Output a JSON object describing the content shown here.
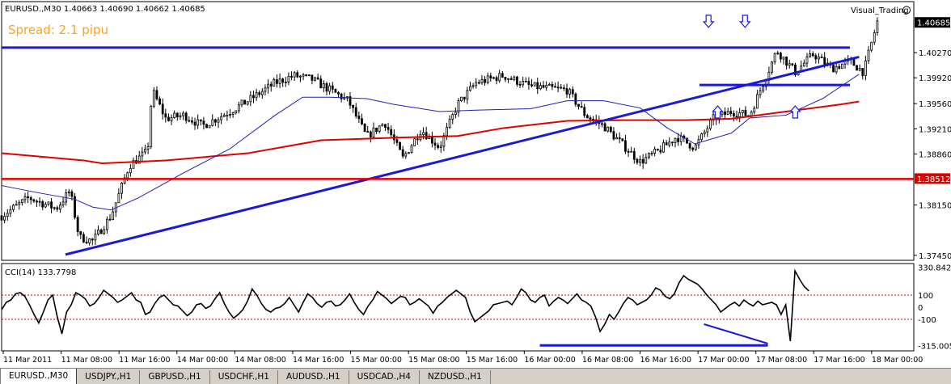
{
  "chart_data": [
    {
      "type": "candlestick",
      "symbol_header": "EURUSD.,M30  1.40663 1.40690 1.40662 1.40685",
      "spread_label": "Spread: 2.1 pipu",
      "indicator_name": "Visual_Trading",
      "current_price_label": "1.40685",
      "support_price_label": "1.38512",
      "ylim": [
        1.3738,
        1.4098
      ],
      "y_tick_labels": [
        "1.40270",
        "1.39920",
        "1.39560",
        "1.39210",
        "1.38860",
        "1.38150",
        "1.37450"
      ],
      "y_ticks": [
        1.4027,
        1.3992,
        1.3956,
        1.3921,
        1.3886,
        1.3815,
        1.3745
      ],
      "current_price": 1.40685,
      "support_level": 1.38512,
      "resistance_level": 1.4034,
      "neckline_level": 1.3982,
      "trendline": [
        [
          0.07,
          1.3746
        ],
        [
          0.94,
          1.4021
        ]
      ],
      "ma_slow": [
        [
          0.0,
          1.3887
        ],
        [
          0.09,
          1.3877
        ],
        [
          0.11,
          1.3873
        ],
        [
          0.18,
          1.3877
        ],
        [
          0.27,
          1.3887
        ],
        [
          0.35,
          1.3905
        ],
        [
          0.44,
          1.3909
        ],
        [
          0.5,
          1.3911
        ],
        [
          0.55,
          1.3922
        ],
        [
          0.62,
          1.3932
        ],
        [
          0.68,
          1.3933
        ],
        [
          0.75,
          1.3933
        ],
        [
          0.8,
          1.3935
        ],
        [
          0.86,
          1.3945
        ],
        [
          0.92,
          1.3955
        ],
        [
          0.94,
          1.3959
        ]
      ],
      "ma_fast": [
        [
          0.0,
          1.3842
        ],
        [
          0.04,
          1.3832
        ],
        [
          0.08,
          1.3823
        ],
        [
          0.1,
          1.3812
        ],
        [
          0.12,
          1.3808
        ],
        [
          0.15,
          1.3825
        ],
        [
          0.2,
          1.386
        ],
        [
          0.25,
          1.3893
        ],
        [
          0.3,
          1.394
        ],
        [
          0.33,
          1.3965
        ],
        [
          0.36,
          1.3965
        ],
        [
          0.4,
          1.3963
        ],
        [
          0.43,
          1.3955
        ],
        [
          0.48,
          1.3945
        ],
        [
          0.52,
          1.3947
        ],
        [
          0.58,
          1.3949
        ],
        [
          0.62,
          1.396
        ],
        [
          0.66,
          1.396
        ],
        [
          0.7,
          1.395
        ],
        [
          0.73,
          1.3922
        ],
        [
          0.76,
          1.39
        ],
        [
          0.8,
          1.3915
        ],
        [
          0.82,
          1.3936
        ],
        [
          0.86,
          1.394
        ],
        [
          0.9,
          1.3963
        ],
        [
          0.94,
          1.3997
        ]
      ],
      "price_path": [
        [
          0.0,
          1.38
        ],
        [
          0.03,
          1.3825
        ],
        [
          0.06,
          1.381
        ],
        [
          0.075,
          1.3835
        ],
        [
          0.085,
          1.377
        ],
        [
          0.1,
          1.3765
        ],
        [
          0.12,
          1.38
        ],
        [
          0.14,
          1.387
        ],
        [
          0.16,
          1.389
        ],
        [
          0.165,
          1.3975
        ],
        [
          0.18,
          1.3935
        ],
        [
          0.2,
          1.394
        ],
        [
          0.22,
          1.3925
        ],
        [
          0.25,
          1.3945
        ],
        [
          0.27,
          1.396
        ],
        [
          0.3,
          1.3985
        ],
        [
          0.32,
          1.3995
        ],
        [
          0.34,
          1.399
        ],
        [
          0.36,
          1.3975
        ],
        [
          0.38,
          1.396
        ],
        [
          0.4,
          1.391
        ],
        [
          0.42,
          1.393
        ],
        [
          0.44,
          1.388
        ],
        [
          0.46,
          1.392
        ],
        [
          0.48,
          1.3895
        ],
        [
          0.5,
          1.3955
        ],
        [
          0.52,
          1.3985
        ],
        [
          0.55,
          1.3995
        ],
        [
          0.58,
          1.398
        ],
        [
          0.62,
          1.3975
        ],
        [
          0.64,
          1.394
        ],
        [
          0.66,
          1.3925
        ],
        [
          0.68,
          1.39
        ],
        [
          0.7,
          1.3875
        ],
        [
          0.72,
          1.389
        ],
        [
          0.74,
          1.391
        ],
        [
          0.76,
          1.3895
        ],
        [
          0.78,
          1.3935
        ],
        [
          0.8,
          1.3945
        ],
        [
          0.82,
          1.394
        ],
        [
          0.85,
          1.403
        ],
        [
          0.87,
          1.4
        ],
        [
          0.89,
          1.4025
        ],
        [
          0.91,
          1.4005
        ],
        [
          0.93,
          1.4015
        ],
        [
          0.945,
          1.4
        ],
        [
          0.96,
          1.407
        ]
      ],
      "arrows_down": [
        [
          0.775,
          1.407
        ],
        [
          0.815,
          1.407
        ]
      ],
      "arrows_up": [
        [
          0.785,
          1.3945
        ],
        [
          0.87,
          1.3945
        ]
      ],
      "x_labels": [
        "11 Mar 2011",
        "11 Mar 08:00",
        "11 Mar 16:00",
        "14 Mar 00:00",
        "14 Mar 08:00",
        "14 Mar 16:00",
        "15 Mar 00:00",
        "15 Mar 08:00",
        "15 Mar 16:00",
        "16 Mar 00:00",
        "16 Mar 08:00",
        "16 Mar 16:00",
        "17 Mar 00:00",
        "17 Mar 08:00",
        "17 Mar 16:00",
        "18 Mar 00:00"
      ]
    },
    {
      "type": "line",
      "title": "CCI(14) 133.7798",
      "ylim": [
        -360,
        360
      ],
      "y_tick_labels": [
        "330.8422",
        "100",
        "0",
        "-100",
        "-315.005"
      ],
      "y_ticks": [
        330.8422,
        100,
        0,
        -100,
        -315.005
      ],
      "dotted_levels": [
        100,
        -100
      ],
      "values": [
        -20,
        40,
        60,
        110,
        120,
        90,
        20,
        -60,
        -130,
        -40,
        60,
        100,
        -80,
        -220,
        -40,
        20,
        120,
        100,
        70,
        10,
        30,
        80,
        140,
        110,
        80,
        40,
        60,
        90,
        120,
        60,
        40,
        -60,
        -40,
        30,
        80,
        100,
        60,
        20,
        10,
        -30,
        -70,
        -40,
        20,
        30,
        -10,
        10,
        70,
        120,
        30,
        -40,
        -90,
        -60,
        -20,
        50,
        150,
        100,
        30,
        -20,
        -40,
        -10,
        0,
        30,
        80,
        20,
        -40,
        40,
        110,
        80,
        30,
        0,
        40,
        50,
        10,
        20,
        60,
        110,
        40,
        -20,
        -60,
        10,
        60,
        130,
        100,
        70,
        30,
        60,
        90,
        80,
        20,
        40,
        70,
        40,
        10,
        -50,
        10,
        40,
        80,
        110,
        140,
        110,
        80,
        -40,
        -120,
        -90,
        -60,
        -30,
        20,
        30,
        40,
        50,
        20,
        80,
        150,
        120,
        60,
        40,
        80,
        100,
        10,
        50,
        80,
        60,
        30,
        70,
        110,
        60,
        40,
        10,
        -80,
        -200,
        -140,
        -60,
        -100,
        -40,
        30,
        80,
        60,
        20,
        40,
        60,
        100,
        160,
        140,
        90,
        70,
        110,
        200,
        260,
        230,
        210,
        190,
        150,
        100,
        60,
        20,
        -40,
        -10,
        20,
        40,
        10,
        60,
        30,
        10,
        50,
        20,
        30,
        40,
        20,
        -60,
        20,
        -280,
        300,
        230,
        170,
        133.78
      ],
      "divergence_support": [
        [
          0.59,
          -315
        ],
        [
          0.84,
          -315
        ]
      ],
      "divergence_line": [
        [
          0.77,
          -140
        ],
        [
          0.84,
          -300
        ]
      ]
    }
  ],
  "tabs": [
    "EURUSD.,M30",
    "USDJPY.,H1",
    "GBPUSD.,H1",
    "USDCHF.,H1",
    "AUDUSD.,H1",
    "USDCAD.,H4",
    "NZDUSD.,H1"
  ],
  "colors": {
    "candle": "#000000",
    "ma_slow": "#e00000",
    "ma_fast": "#1f1fb8",
    "trendline": "#1a1ad6",
    "horizontal_blue": "#1a1ad6",
    "support_red": "#e00000",
    "spread_text": "#ffa020",
    "price_label_bg": "#000000",
    "support_label_bg": "#e00000",
    "cci_line": "#000000",
    "dotted_level": "#c00000"
  }
}
